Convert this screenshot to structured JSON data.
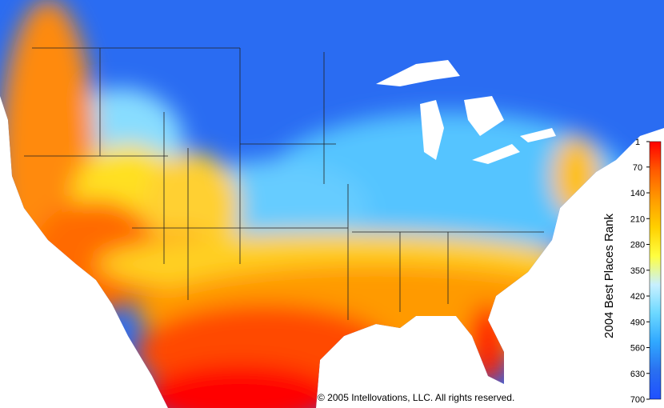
{
  "colorbar": {
    "label": "2004 Best Places Rank",
    "lim": [
      1,
      700
    ],
    "ticks": [
      1,
      70,
      140,
      210,
      280,
      350,
      420,
      490,
      560,
      630,
      700
    ],
    "colors": [
      "#ff0000",
      "#ff5a00",
      "#ff9a00",
      "#ffd000",
      "#ffff40",
      "#c8f0ff",
      "#6cd8ff",
      "#30a8ff",
      "#2a70f0",
      "#1f50ff"
    ]
  },
  "copyright": "© 2005 Intellovations, LLC. All rights reserved."
}
